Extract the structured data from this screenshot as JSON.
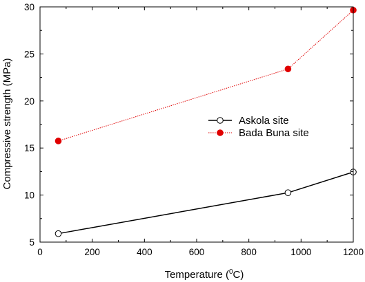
{
  "chart_data": {
    "type": "line",
    "xlabel": "Temperature",
    "xlabel_unit_base": "C",
    "xlabel_unit_sup": "0",
    "ylabel": "Compressive strength (MPa)",
    "xlim": [
      0,
      1200
    ],
    "ylim": [
      5,
      30
    ],
    "xticks": [
      0,
      200,
      400,
      600,
      800,
      1000,
      1200
    ],
    "yticks": [
      5,
      10,
      15,
      20,
      25,
      30
    ],
    "grid": false,
    "legend_position": "center-right",
    "series": [
      {
        "name": "Askola site",
        "x": [
          70,
          950,
          1200
        ],
        "y": [
          5.9,
          10.25,
          12.45
        ],
        "color": "#000000",
        "line_style": "solid",
        "marker": "open-circle"
      },
      {
        "name": "Bada Buna site",
        "x": [
          70,
          950,
          1200
        ],
        "y": [
          15.75,
          23.4,
          29.65
        ],
        "color": "#e00000",
        "line_style": "dotted",
        "marker": "filled-circle"
      }
    ]
  }
}
